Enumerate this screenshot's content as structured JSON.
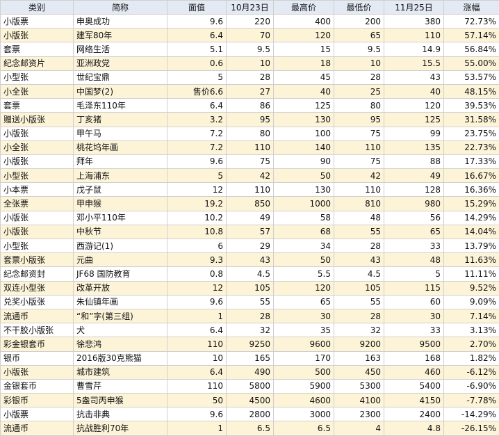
{
  "table": {
    "header": [
      "类别",
      "简称",
      "面值",
      "10月23日",
      "最高价",
      "最低价",
      "11月25日",
      "涨幅"
    ],
    "rows": [
      [
        "小版票",
        "申奥成功",
        "9.6",
        "220",
        "400",
        "200",
        "380",
        "72.73%"
      ],
      [
        "小版张",
        "建军80年",
        "6.4",
        "70",
        "120",
        "65",
        "110",
        "57.14%"
      ],
      [
        "套票",
        "网络生活",
        "5.1",
        "9.5",
        "15",
        "9.5",
        "14.9",
        "56.84%"
      ],
      [
        "纪念邮资片",
        "亚洲政党",
        "0.6",
        "10",
        "18",
        "10",
        "15.5",
        "55.00%"
      ],
      [
        "小型张",
        "世纪宝鼎",
        "5",
        "28",
        "45",
        "28",
        "43",
        "53.57%"
      ],
      [
        "小全张",
        "中国梦(2)",
        "售价6.6",
        "27",
        "40",
        "25",
        "40",
        "48.15%"
      ],
      [
        "套票",
        "毛泽东110年",
        "6.4",
        "86",
        "125",
        "80",
        "120",
        "39.53%"
      ],
      [
        "赠送小版张",
        "丁亥猪",
        "3.2",
        "95",
        "130",
        "95",
        "125",
        "31.58%"
      ],
      [
        "小版张",
        "甲午马",
        "7.2",
        "80",
        "100",
        "75",
        "99",
        "23.75%"
      ],
      [
        "小全张",
        "桃花坞年画",
        "7.2",
        "110",
        "140",
        "110",
        "135",
        "22.73%"
      ],
      [
        "小版张",
        "拜年",
        "9.6",
        "75",
        "90",
        "75",
        "88",
        "17.33%"
      ],
      [
        "小型张",
        "上海浦东",
        "5",
        "42",
        "50",
        "42",
        "49",
        "16.67%"
      ],
      [
        "小本票",
        "戊子鼠",
        "12",
        "110",
        "130",
        "110",
        "128",
        "16.36%"
      ],
      [
        "全张票",
        "甲申猴",
        "19.2",
        "850",
        "1000",
        "810",
        "980",
        "15.29%"
      ],
      [
        "小版张",
        "邓小平110年",
        "10.2",
        "49",
        "58",
        "48",
        "56",
        "14.29%"
      ],
      [
        "小版张",
        "中秋节",
        "10.8",
        "57",
        "68",
        "55",
        "65",
        "14.04%"
      ],
      [
        "小型张",
        "西游记(1)",
        "6",
        "29",
        "34",
        "28",
        "33",
        "13.79%"
      ],
      [
        "套票小版张",
        "元曲",
        "9.3",
        "43",
        "50",
        "43",
        "48",
        "11.63%"
      ],
      [
        "纪念邮资封",
        "JF68 国防教育",
        "0.8",
        "4.5",
        "5.5",
        "4.5",
        "5",
        "11.11%"
      ],
      [
        "双连小型张",
        "改革开放",
        "12",
        "105",
        "120",
        "105",
        "115",
        "9.52%"
      ],
      [
        "兑奖小版张",
        "朱仙镇年画",
        "9.6",
        "55",
        "65",
        "55",
        "60",
        "9.09%"
      ],
      [
        "流通币",
        "“和”字(第三组)",
        "1",
        "28",
        "30",
        "28",
        "30",
        "7.14%"
      ],
      [
        "不干胶小版张",
        "犬",
        "6.4",
        "32",
        "35",
        "32",
        "33",
        "3.13%"
      ],
      [
        "彩金银套币",
        "徐悲鸿",
        "110",
        "9250",
        "9600",
        "9200",
        "9500",
        "2.70%"
      ],
      [
        "银币",
        "2016版30克熊猫",
        "10",
        "165",
        "170",
        "163",
        "168",
        "1.82%"
      ],
      [
        "小版张",
        "城市建筑",
        "6.4",
        "490",
        "500",
        "450",
        "460",
        "-6.12%"
      ],
      [
        "金银套币",
        "曹雪芹",
        "110",
        "5800",
        "5900",
        "5300",
        "5400",
        "-6.90%"
      ],
      [
        "彩银币",
        "5盎司丙申猴",
        "50",
        "4500",
        "4600",
        "4100",
        "4150",
        "-7.78%"
      ],
      [
        "小版票",
        "抗击非典",
        "9.6",
        "2800",
        "3000",
        "2300",
        "2400",
        "-14.29%"
      ],
      [
        "流通币",
        "抗战胜利70年",
        "1",
        "6.5",
        "6.5",
        "4",
        "4.8",
        "-26.15%"
      ]
    ]
  }
}
